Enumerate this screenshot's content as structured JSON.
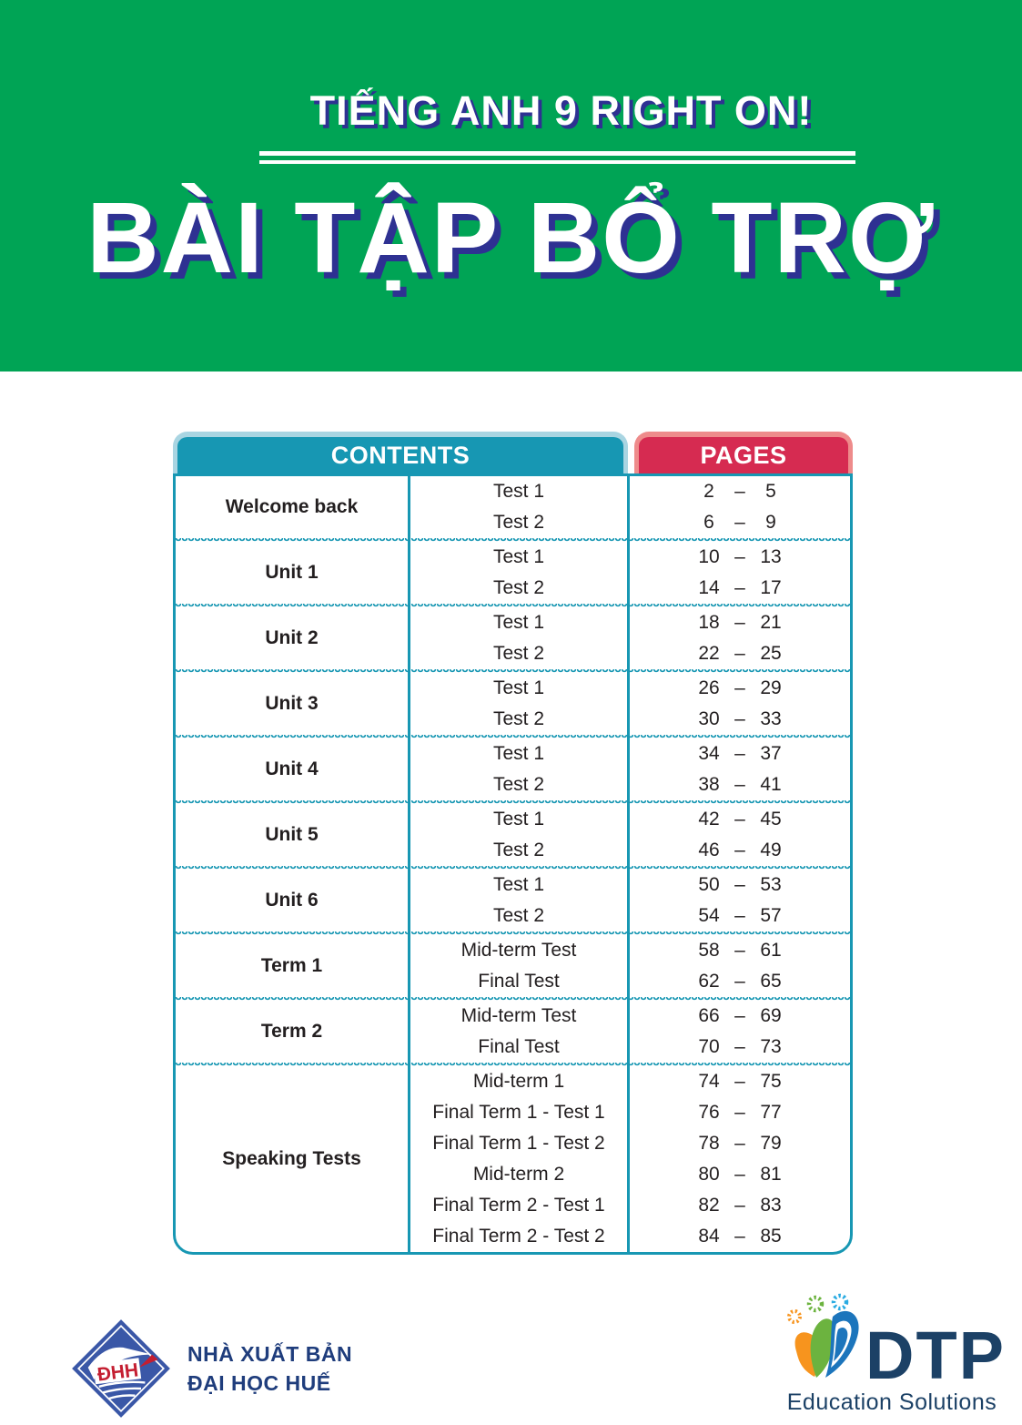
{
  "header": {
    "series_title": "TIẾNG ANH 9 RIGHT ON!",
    "book_title": "BÀI TẬP BỔ TRỢ"
  },
  "toc": {
    "contents_label": "CONTENTS",
    "pages_label": "PAGES",
    "page_dash": "–",
    "groups": [
      {
        "category": "Welcome back",
        "items": [
          {
            "label": "Test 1",
            "from": "2",
            "to": "5"
          },
          {
            "label": "Test 2",
            "from": "6",
            "to": "9"
          }
        ]
      },
      {
        "category": "Unit 1",
        "items": [
          {
            "label": "Test 1",
            "from": "10",
            "to": "13"
          },
          {
            "label": "Test 2",
            "from": "14",
            "to": "17"
          }
        ]
      },
      {
        "category": "Unit 2",
        "items": [
          {
            "label": "Test 1",
            "from": "18",
            "to": "21"
          },
          {
            "label": "Test 2",
            "from": "22",
            "to": "25"
          }
        ]
      },
      {
        "category": "Unit 3",
        "items": [
          {
            "label": "Test 1",
            "from": "26",
            "to": "29"
          },
          {
            "label": "Test 2",
            "from": "30",
            "to": "33"
          }
        ]
      },
      {
        "category": "Unit 4",
        "items": [
          {
            "label": "Test 1",
            "from": "34",
            "to": "37"
          },
          {
            "label": "Test 2",
            "from": "38",
            "to": "41"
          }
        ]
      },
      {
        "category": "Unit 5",
        "items": [
          {
            "label": "Test 1",
            "from": "42",
            "to": "45"
          },
          {
            "label": "Test 2",
            "from": "46",
            "to": "49"
          }
        ]
      },
      {
        "category": "Unit 6",
        "items": [
          {
            "label": "Test 1",
            "from": "50",
            "to": "53"
          },
          {
            "label": "Test 2",
            "from": "54",
            "to": "57"
          }
        ]
      },
      {
        "category": "Term 1",
        "items": [
          {
            "label": "Mid-term Test",
            "from": "58",
            "to": "61"
          },
          {
            "label": "Final Test",
            "from": "62",
            "to": "65"
          }
        ]
      },
      {
        "category": "Term 2",
        "items": [
          {
            "label": "Mid-term Test",
            "from": "66",
            "to": "69"
          },
          {
            "label": "Final Test",
            "from": "70",
            "to": "73"
          }
        ]
      },
      {
        "category": "Speaking Tests",
        "items": [
          {
            "label": "Mid-term 1",
            "from": "74",
            "to": "75"
          },
          {
            "label": "Final Term 1 - Test 1",
            "from": "76",
            "to": "77"
          },
          {
            "label": "Final Term 1 - Test 2",
            "from": "78",
            "to": "79"
          },
          {
            "label": "Mid-term 2",
            "from": "80",
            "to": "81"
          },
          {
            "label": "Final Term 2 - Test 1",
            "from": "82",
            "to": "83"
          },
          {
            "label": "Final Term 2 - Test 2",
            "from": "84",
            "to": "85"
          }
        ]
      }
    ]
  },
  "footer": {
    "dhh_logo_text": "ĐHH",
    "publisher_line1": "NHÀ XUẤT BẢN",
    "publisher_line2": "ĐẠI HỌC HUẾ",
    "dtp_wordmark": "DTP",
    "dtp_subtitle": "Education Solutions"
  },
  "colors": {
    "band_green": "#00A455",
    "title_shadow_navy": "#2E3192",
    "table_teal": "#1797B3",
    "contents_pill_border": "#A9D5E2",
    "pages_pill_red": "#D62B51",
    "pages_pill_border": "#EE8B8B",
    "body_text": "#231F20",
    "publisher_navy": "#1F3D7C",
    "dtp_navy": "#1C4166"
  }
}
